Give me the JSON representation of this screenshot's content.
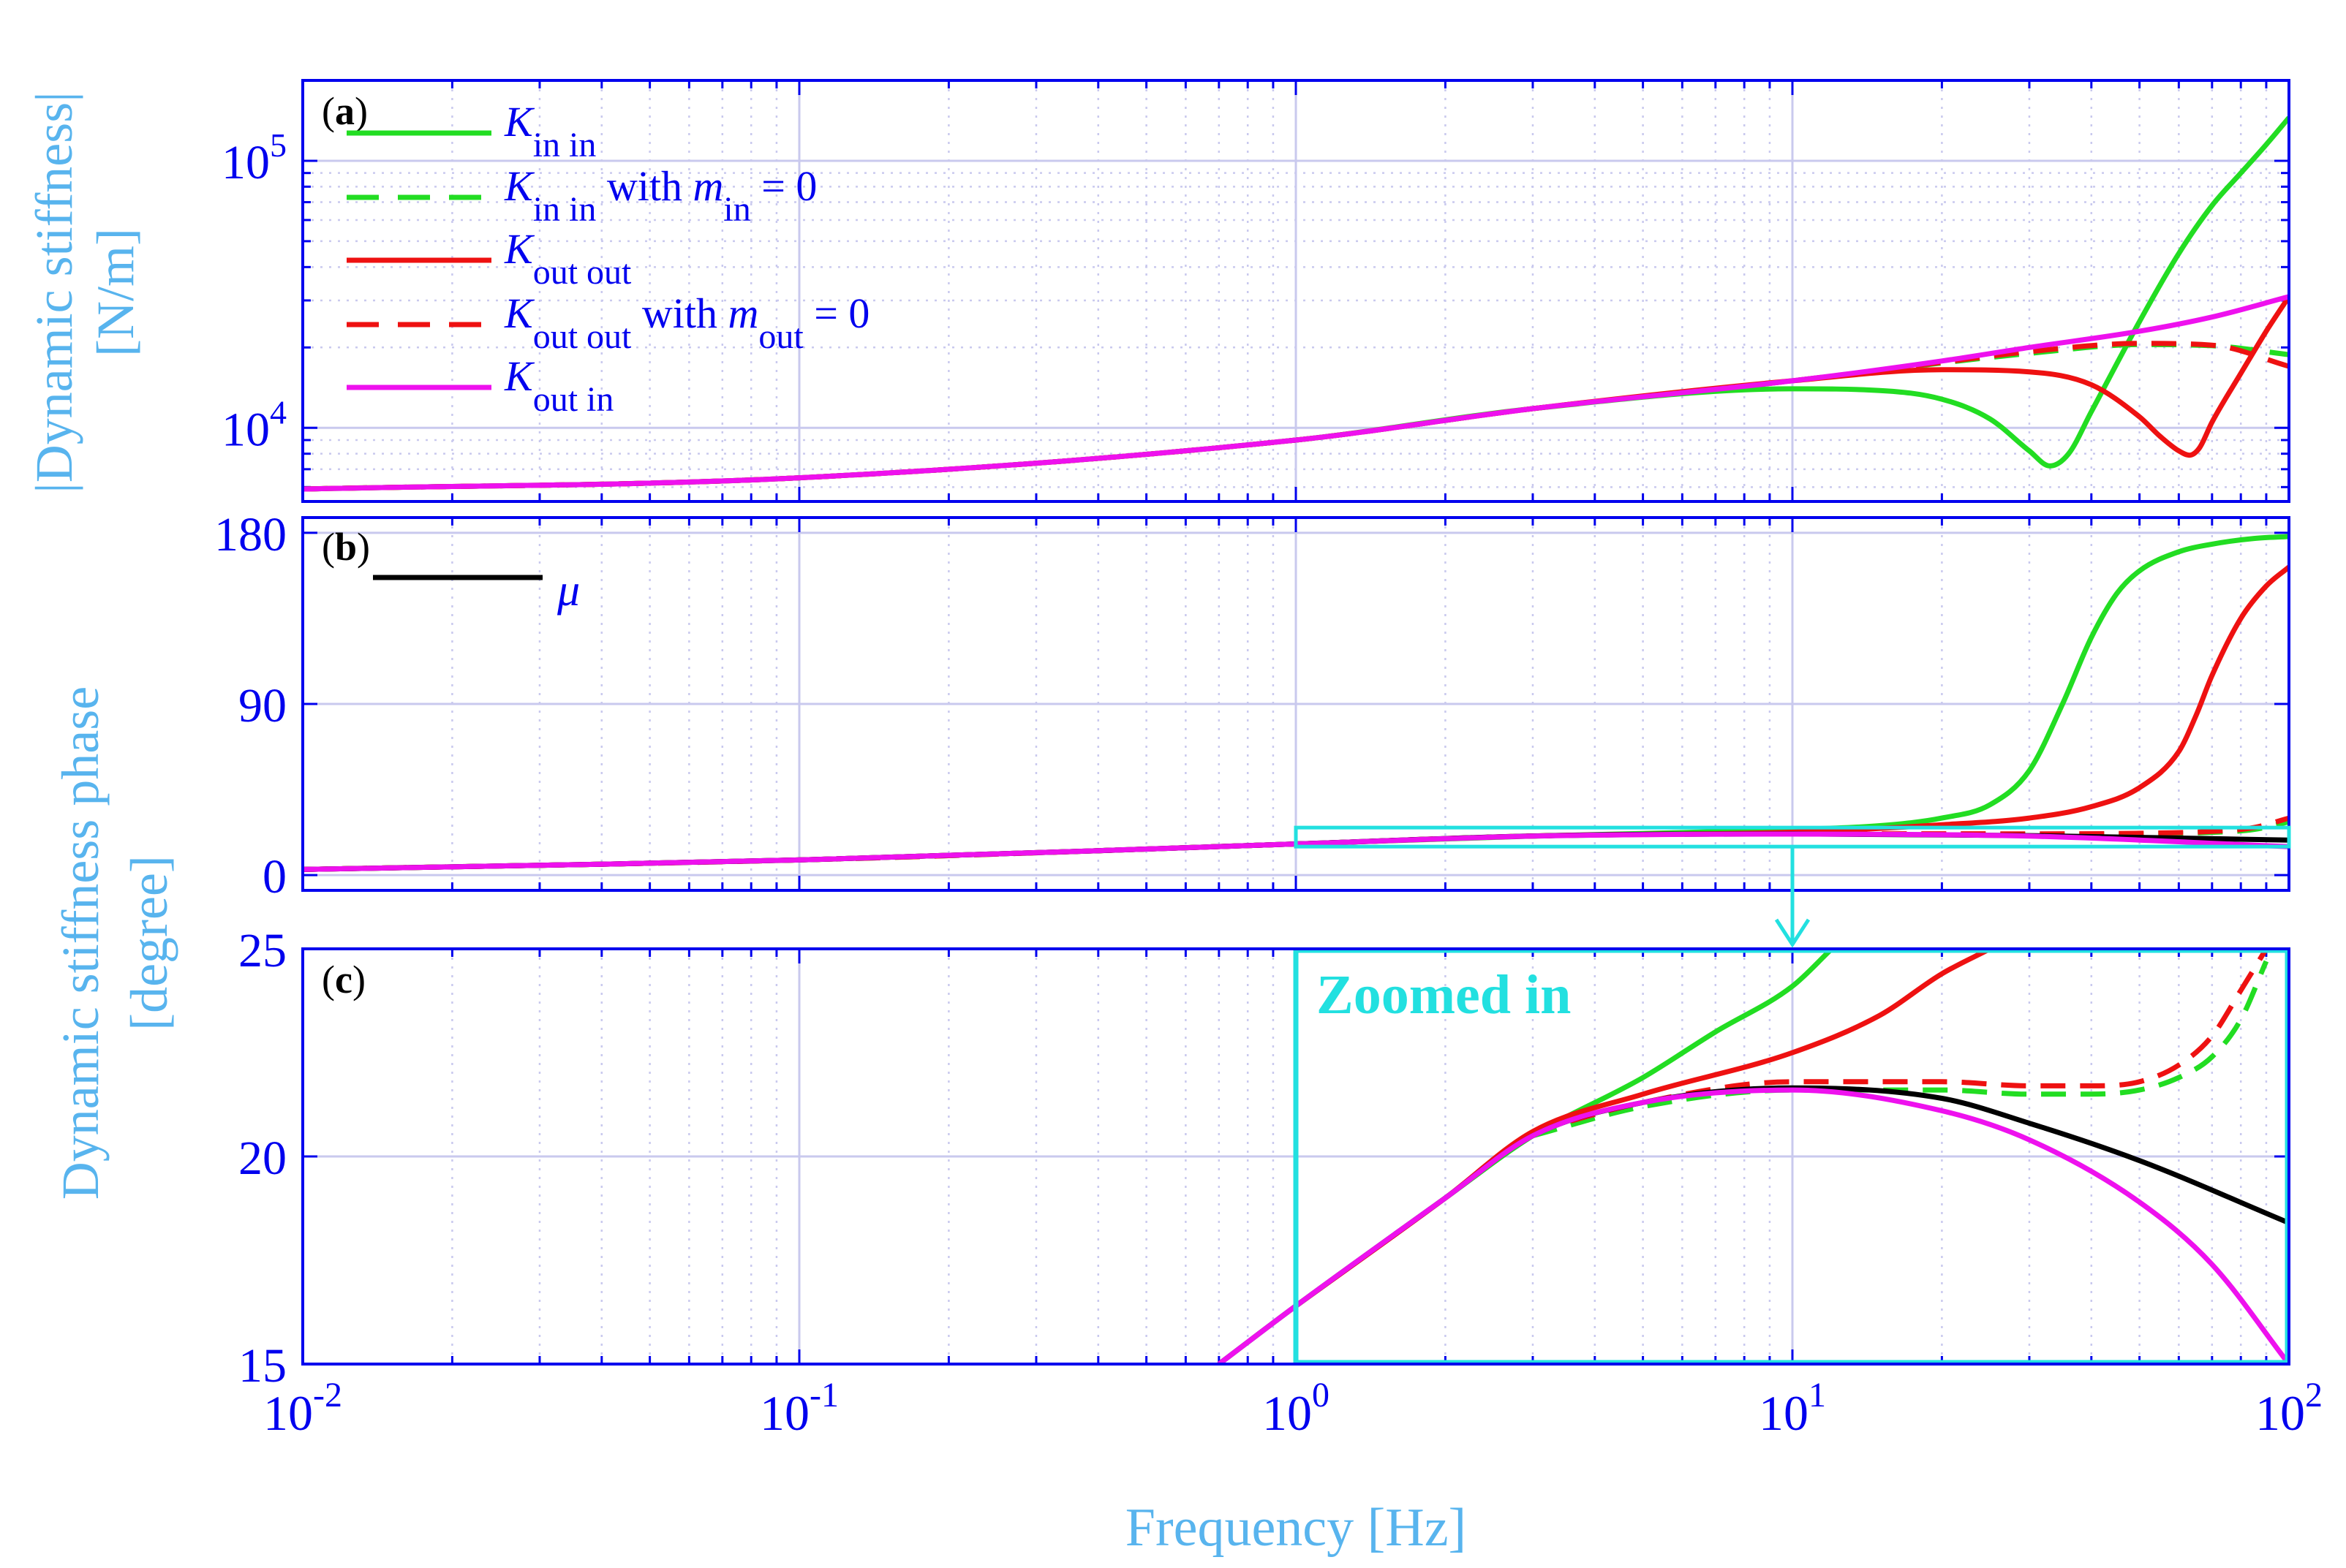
{
  "figure": {
    "ylabel_a_line1": "|Dynamic stiffness|",
    "ylabel_a_line2": "[N/m]",
    "ylabel_bc_line1": "Dynamic stiffness phase",
    "ylabel_bc_line2": "[degree]",
    "xlabel": "Frequency [Hz]",
    "zoom_label": "Zoomed in"
  },
  "colors": {
    "axis": "#0000ee",
    "grid": "#c9c9ee",
    "label": "#58b4ee",
    "zoom": "#22e0e0",
    "green": "#22dd22",
    "red": "#ee1111",
    "magenta": "#ee11ee",
    "black": "#000000"
  },
  "x_ticks": [
    {
      "base": "10",
      "exp": "-2",
      "value": 0.01
    },
    {
      "base": "10",
      "exp": "-1",
      "value": 0.1
    },
    {
      "base": "10",
      "exp": "0",
      "value": 1
    },
    {
      "base": "10",
      "exp": "1",
      "value": 10
    },
    {
      "base": "10",
      "exp": "2",
      "value": 100
    }
  ],
  "chart_data": [
    {
      "panel": "(a)",
      "type": "line",
      "xscale": "log",
      "yscale": "log",
      "xlim": [
        0.01,
        100
      ],
      "ylim": [
        5300,
        200000
      ],
      "xlabel": "Frequency [Hz]",
      "ylabel": "|Dynamic stiffness| [N/m]",
      "yticks": [
        {
          "base": "10",
          "exp": "4",
          "value": 10000
        },
        {
          "base": "10",
          "exp": "5",
          "value": 100000
        }
      ],
      "legend": [
        {
          "sym": "K",
          "sub": "in in",
          "tail": "",
          "tail_sym": "",
          "tail_sub": "",
          "tail_end": "",
          "color": "green",
          "dash": false
        },
        {
          "sym": "K",
          "sub": "in in",
          "tail": "with ",
          "tail_sym": "m",
          "tail_sub": "in",
          "tail_end": " = 0",
          "color": "green",
          "dash": true
        },
        {
          "sym": "K",
          "sub": "out out",
          "tail": "",
          "tail_sym": "",
          "tail_sub": "",
          "tail_end": "",
          "color": "red",
          "dash": false
        },
        {
          "sym": "K",
          "sub": "out out",
          "tail": "with ",
          "tail_sym": "m",
          "tail_sub": "out",
          "tail_end": " = 0",
          "color": "red",
          "dash": true
        },
        {
          "sym": "K",
          "sub": "out in",
          "tail": "",
          "tail_sym": "",
          "tail_sub": "",
          "tail_end": "",
          "color": "magenta",
          "dash": false
        }
      ],
      "series": [
        {
          "name": "K in in",
          "color": "green",
          "dash": false,
          "x": [
            0.01,
            0.1,
            1,
            3,
            10,
            15,
            20,
            25,
            30,
            33,
            36,
            40,
            50,
            60,
            70,
            80,
            90,
            100
          ],
          "y": [
            5900,
            6500,
            9000,
            11800,
            14000,
            13800,
            12800,
            10800,
            8200,
            7200,
            8000,
            11500,
            25000,
            45000,
            68000,
            90000,
            115000,
            145000
          ]
        },
        {
          "name": "K in in with m in = 0",
          "color": "green",
          "dash": true,
          "x": [
            0.01,
            0.1,
            1,
            3,
            10,
            20,
            30,
            50,
            70,
            100
          ],
          "y": [
            5900,
            6500,
            9000,
            11800,
            15000,
            17500,
            19000,
            20500,
            20300,
            18800
          ]
        },
        {
          "name": "K out out",
          "color": "red",
          "dash": false,
          "x": [
            0.01,
            0.1,
            1,
            3,
            10,
            20,
            30,
            40,
            50,
            55,
            60,
            63,
            66,
            70,
            80,
            90,
            100
          ],
          "y": [
            5900,
            6500,
            9000,
            11800,
            15000,
            16500,
            16200,
            14500,
            11000,
            9300,
            8200,
            7900,
            8400,
            10500,
            16000,
            23000,
            31000
          ]
        },
        {
          "name": "K out out with m out = 0",
          "color": "red",
          "dash": true,
          "x": [
            0.01,
            0.1,
            1,
            3,
            10,
            20,
            30,
            50,
            70,
            100
          ],
          "y": [
            5900,
            6500,
            9000,
            11800,
            15000,
            17600,
            19300,
            20700,
            20400,
            17000
          ]
        },
        {
          "name": "K out in",
          "color": "magenta",
          "dash": false,
          "x": [
            0.01,
            0.1,
            1,
            3,
            10,
            20,
            30,
            50,
            70,
            100
          ],
          "y": [
            5900,
            6500,
            9000,
            11800,
            15000,
            17800,
            20000,
            23000,
            26000,
            31000
          ]
        }
      ]
    },
    {
      "panel": "(b)",
      "type": "line",
      "xscale": "log",
      "xlim": [
        0.01,
        100
      ],
      "ylim": [
        -8,
        188
      ],
      "xlabel": "Frequency [Hz]",
      "ylabel": "Dynamic stiffness phase [degree]",
      "yticks": [
        {
          "label": "0",
          "value": 0
        },
        {
          "label": "90",
          "value": 90
        },
        {
          "label": "180",
          "value": 180
        }
      ],
      "legend": [
        {
          "label": "μ",
          "color": "black",
          "dash": false
        }
      ],
      "series": [
        {
          "name": "K in in",
          "color": "green",
          "dash": false,
          "x": [
            0.01,
            0.1,
            1,
            3,
            10,
            15,
            20,
            25,
            30,
            35,
            40,
            45,
            50,
            60,
            70,
            85,
            100
          ],
          "y": [
            3,
            8,
            16.4,
            20.5,
            24,
            26,
            30,
            37,
            55,
            90,
            125,
            148,
            160,
            170,
            174,
            177,
            178
          ]
        },
        {
          "name": "K in in with m in = 0",
          "color": "green",
          "dash": true,
          "x": [
            0.01,
            0.1,
            1,
            3,
            10,
            30,
            50,
            70,
            85,
            100
          ],
          "y": [
            3,
            8,
            16.4,
            20.5,
            21.6,
            21.5,
            21.6,
            22.5,
            24,
            28
          ]
        },
        {
          "name": "K out out",
          "color": "red",
          "dash": false,
          "x": [
            0.01,
            0.1,
            1,
            3,
            10,
            20,
            30,
            40,
            50,
            60,
            65,
            70,
            80,
            90,
            100
          ],
          "y": [
            3,
            8,
            16.4,
            20.6,
            22.6,
            26.5,
            30,
            36,
            46,
            65,
            84,
            105,
            135,
            152,
            162
          ]
        },
        {
          "name": "K out out with m out = 0",
          "color": "red",
          "dash": true,
          "x": [
            0.01,
            0.1,
            1,
            3,
            10,
            30,
            50,
            70,
            85,
            100
          ],
          "y": [
            3,
            8,
            16.4,
            20.6,
            21.8,
            21.7,
            22,
            23,
            25,
            30
          ]
        },
        {
          "name": "μ",
          "color": "black",
          "dash": false,
          "x": [
            0.01,
            0.1,
            1,
            3,
            10,
            30,
            100
          ],
          "y": [
            3,
            8,
            16.4,
            20.6,
            21.7,
            20.8,
            18.4
          ]
        },
        {
          "name": "K out in",
          "color": "magenta",
          "dash": false,
          "x": [
            0.01,
            0.1,
            1,
            3,
            10,
            30,
            100
          ],
          "y": [
            3,
            8,
            16.4,
            20.5,
            21.6,
            20.5,
            15
          ]
        }
      ]
    },
    {
      "panel": "(c)",
      "type": "line",
      "xscale": "log",
      "xlim": [
        0.01,
        100
      ],
      "ylim": [
        15,
        25
      ],
      "xlabel": "Frequency [Hz]",
      "ylabel": "Dynamic stiffness phase [degree]",
      "yticks": [
        {
          "label": "15",
          "value": 15
        },
        {
          "label": "20",
          "value": 20
        },
        {
          "label": "25",
          "value": 25
        }
      ],
      "series": [
        {
          "name": "K in in",
          "color": "green",
          "dash": false,
          "x": [
            1,
            2,
            3,
            5,
            7,
            10,
            12
          ],
          "y": [
            16.4,
            19,
            20.5,
            21.9,
            23,
            24.1,
            25
          ]
        },
        {
          "name": "K in in with m in = 0",
          "color": "green",
          "dash": true,
          "x": [
            3,
            5,
            10,
            20,
            30,
            40,
            50,
            60,
            70,
            80,
            90
          ],
          "y": [
            20.5,
            21.2,
            21.6,
            21.6,
            21.5,
            21.5,
            21.6,
            21.9,
            22.4,
            23.3,
            24.7
          ]
        },
        {
          "name": "K out out",
          "color": "red",
          "dash": false,
          "x": [
            1,
            2,
            3,
            5,
            10,
            15,
            20,
            25
          ],
          "y": [
            16.4,
            19,
            20.6,
            21.5,
            22.5,
            23.4,
            24.4,
            25
          ]
        },
        {
          "name": "K out out with m out = 0",
          "color": "red",
          "dash": true,
          "x": [
            3,
            5,
            10,
            20,
            30,
            40,
            50,
            60,
            70,
            80,
            90
          ],
          "y": [
            20.6,
            21.3,
            21.8,
            21.8,
            21.7,
            21.7,
            21.8,
            22.2,
            22.9,
            24,
            25
          ]
        },
        {
          "name": "μ",
          "color": "black",
          "dash": false,
          "x": [
            0.7,
            1,
            2,
            3,
            5,
            10,
            20,
            30,
            50,
            100
          ],
          "y": [
            15,
            16.4,
            19,
            20.5,
            21.3,
            21.65,
            21.4,
            20.8,
            19.9,
            18.4
          ]
        },
        {
          "name": "K out in",
          "color": "magenta",
          "dash": false,
          "x": [
            0.7,
            1,
            2,
            3,
            5,
            10,
            20,
            30,
            50,
            70,
            100
          ],
          "y": [
            15,
            16.4,
            19,
            20.5,
            21.3,
            21.6,
            21.1,
            20.4,
            18.9,
            17.4,
            15
          ]
        }
      ],
      "zoom_box": {
        "xlim": [
          1,
          100
        ],
        "ylim": [
          15,
          25
        ]
      }
    }
  ]
}
